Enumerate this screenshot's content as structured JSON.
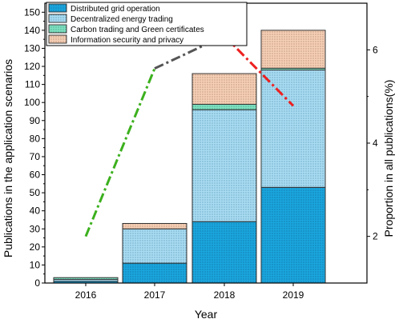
{
  "chart_data": {
    "type": "bar",
    "categories": [
      "2016",
      "2017",
      "2018",
      "2019"
    ],
    "xlabel": "Year",
    "ylabel": "Publications in the application scenarios",
    "y2label": "Proportion in all publications(%)",
    "ylim": [
      0,
      155
    ],
    "y2lim": [
      1,
      7
    ],
    "yticks": [
      0,
      10,
      20,
      30,
      40,
      50,
      60,
      70,
      80,
      90,
      100,
      110,
      120,
      130,
      140,
      150
    ],
    "y2ticks": [
      2,
      4,
      6
    ],
    "stacked": true,
    "legend_position": "top-left",
    "grid": false,
    "series": [
      {
        "name": "Distributed grid operation",
        "values": [
          1,
          11,
          34,
          53
        ],
        "color": "#1aa6de",
        "pattern": "dense dots"
      },
      {
        "name": "Decentralized energy trading",
        "values": [
          1,
          19,
          62,
          65
        ],
        "color": "#a9dcf2",
        "pattern": "dots"
      },
      {
        "name": "Carbon trading and Green certificates",
        "values": [
          1,
          0,
          3,
          1
        ],
        "color": "#7de0c0",
        "pattern": "dots"
      },
      {
        "name": "Information security and privacy",
        "values": [
          0,
          3,
          17,
          21
        ],
        "color": "#f5cfb6",
        "pattern": "dots"
      }
    ],
    "line_series": {
      "axis": "right",
      "points": [
        {
          "x": "2016",
          "y": 2.0
        },
        {
          "x": "2017",
          "y": 5.6
        },
        {
          "x": "2018",
          "y": 6.3
        },
        {
          "x": "2019",
          "y": 4.8
        }
      ],
      "segment_colors": [
        "#3cb01e",
        "#555555",
        "#ee2020"
      ],
      "style": "dash-dot"
    }
  }
}
